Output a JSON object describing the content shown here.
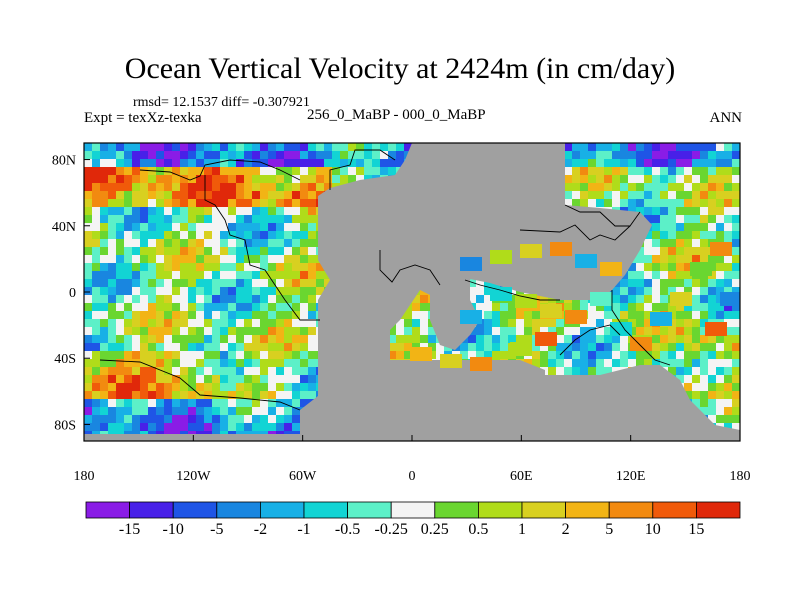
{
  "chart_data": {
    "type": "heatmap",
    "title": "Ocean Vertical Velocity at 2424m (in cm/day)",
    "stats_text": "rmsd= 12.1537 diff= -0.307921",
    "experiment_text": "Expt = texXz-texka",
    "difference_text": "256_0_MaBP - 000_0_MaBP",
    "season": "ANN",
    "x_ticks": [
      "180",
      "120W",
      "60W",
      "0",
      "60E",
      "120E",
      "180"
    ],
    "x_tick_values": [
      -180,
      -120,
      -60,
      0,
      60,
      120,
      180
    ],
    "y_ticks": [
      "80N",
      "40N",
      "0",
      "40S",
      "80S"
    ],
    "y_tick_values": [
      80,
      40,
      0,
      -40,
      -80
    ],
    "xlim": [
      -180,
      180
    ],
    "ylim": [
      -90,
      90
    ],
    "colorbar": {
      "labels": [
        "-15",
        "-10",
        "-5",
        "-2",
        "-1",
        "-0.5",
        "-0.25",
        "0.25",
        "0.5",
        "1",
        "2",
        "5",
        "10",
        "15"
      ],
      "colors": [
        "#8a1ce6",
        "#4820e8",
        "#1f55e6",
        "#1986e0",
        "#18b0e6",
        "#12d4d4",
        "#5cf0c8",
        "#f4f4f4",
        "#6ad630",
        "#b0dc1a",
        "#d8d020",
        "#f2b415",
        "#f28a10",
        "#f05a0a",
        "#e0280a"
      ]
    },
    "land_color": "#a0a0a0"
  }
}
